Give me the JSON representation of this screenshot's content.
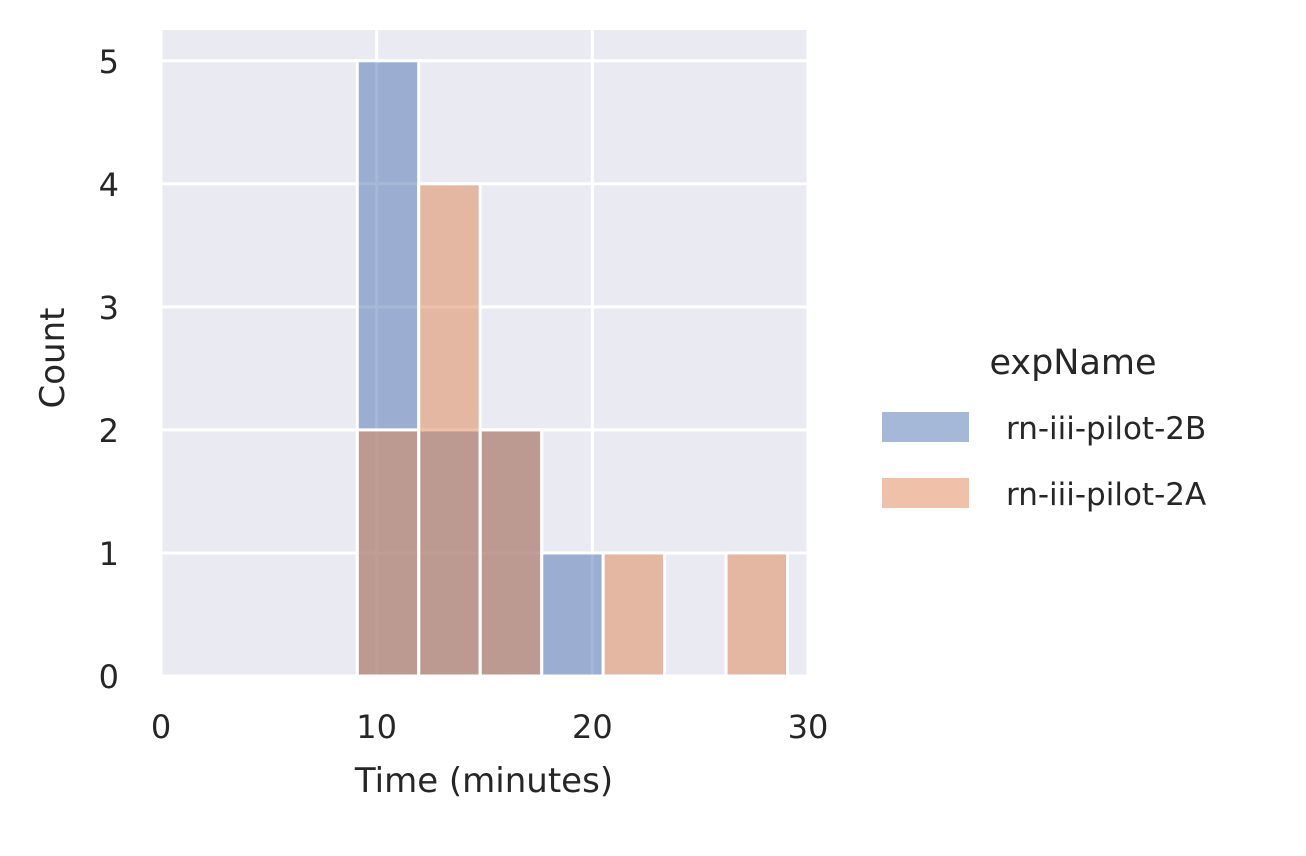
{
  "chart_data": {
    "type": "histogram",
    "xlabel": "Time (minutes)",
    "ylabel": "Count",
    "xlim": [
      0,
      30
    ],
    "ylim": [
      0,
      5.25
    ],
    "xticks": [
      0,
      10,
      20,
      30
    ],
    "yticks": [
      0,
      1,
      2,
      3,
      4,
      5
    ],
    "grid": true,
    "legend_position": "right",
    "legend": {
      "title": "expName"
    },
    "bins": [
      9.1,
      11.95,
      14.8,
      17.65,
      20.5,
      23.35,
      26.2,
      29.05
    ],
    "series": [
      {
        "name": "rn-iii-pilot-2B",
        "color": "#4c72b0",
        "counts": [
          5,
          2,
          2,
          1,
          0,
          0,
          0
        ]
      },
      {
        "name": "rn-iii-pilot-2A",
        "color": "#dd8452",
        "counts": [
          2,
          4,
          2,
          0,
          1,
          0,
          1
        ]
      }
    ]
  }
}
